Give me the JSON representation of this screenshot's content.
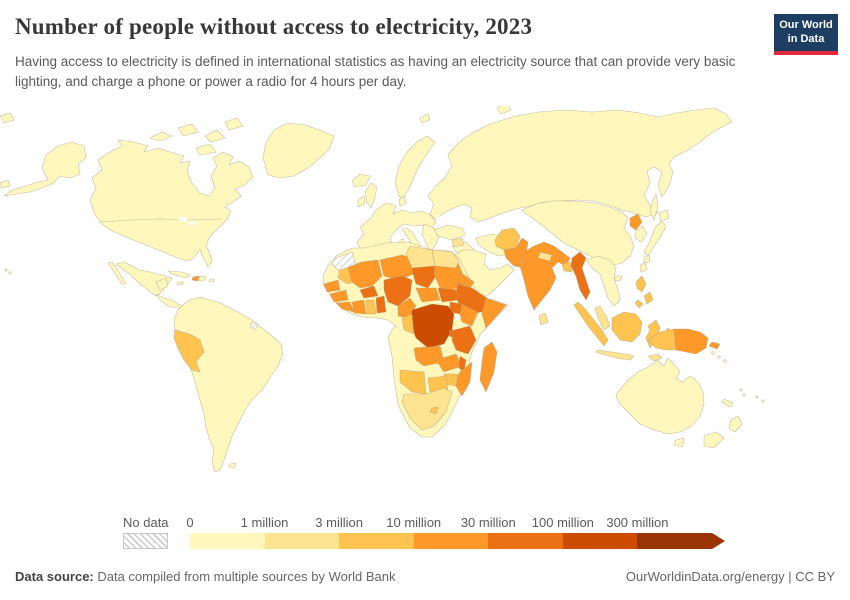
{
  "header": {
    "title": "Number of people without access to electricity, 2023",
    "subtitle": "Having access to electricity is defined in international statistics as having an electricity source that can provide very basic lighting, and charge a phone or power a radio for 4 hours per day.",
    "logo": {
      "line1": "Our World",
      "line2": "in Data",
      "bg_color": "#1d3d63",
      "accent_color": "#e0293e"
    }
  },
  "legend": {
    "no_data_label": "No data",
    "tick_labels": [
      "0",
      "1 million",
      "3 million",
      "10 million",
      "30 million",
      "100 million",
      "300 million"
    ],
    "bins": [
      {
        "range": "0-1 million",
        "color": "#fff7bc"
      },
      {
        "range": "1-3 million",
        "color": "#fee391"
      },
      {
        "range": "3-10 million",
        "color": "#fec44f"
      },
      {
        "range": "10-30 million",
        "color": "#fe9929"
      },
      {
        "range": "30-100 million",
        "color": "#ec7014"
      },
      {
        "range": "100-300 million",
        "color": "#cc4c02"
      },
      {
        "range": "300+ million",
        "color": "#993404"
      }
    ]
  },
  "map": {
    "ocean_color": "#ffffff",
    "border_color": "#a79b85",
    "regions": {
      "western-sahara": -1,
      "french-guiana": -1,
      "peru": 2,
      "haiti": 3,
      "mauritania": 2,
      "senegal": 3,
      "guinea": 3,
      "sierra-leone-liberia": 3,
      "ivory-coast": 3,
      "ghana": 2,
      "togo-benin": 4,
      "burkina-faso": 4,
      "mali": 3,
      "niger": 3,
      "nigeria": 4,
      "chad": 4,
      "sudan": 3,
      "egypt": 1,
      "libya": 1,
      "eritrea": 3,
      "ethiopia": 4,
      "somalia": 3,
      "south-sudan": 4,
      "central-african-republic": 3,
      "cameroon": 3,
      "uganda": 4,
      "kenya": 3,
      "drc": 5,
      "congo": 2,
      "rwanda-burundi": 4,
      "tanzania": 4,
      "angola": 3,
      "zambia": 3,
      "malawi": 4,
      "mozambique": 3,
      "zimbabwe": 2,
      "botswana": 2,
      "namibia": 2,
      "south-africa": 1,
      "lesotho": 2,
      "madagascar": 3,
      "yemen": 3,
      "syria": 1,
      "afghanistan": 2,
      "pakistan": 3,
      "india": 3,
      "nepal": 1,
      "bangladesh": 2,
      "sri-lanka": 1,
      "myanmar": 4,
      "malay-peninsula": 1,
      "north-korea": 3,
      "sumatra": 2,
      "java": 1,
      "borneo": 2,
      "sulawesi": 2,
      "philippines": 2,
      "timor": 1,
      "papua-indonesia": 2,
      "papua-new-guinea": 3,
      "new-britain": 3
    }
  },
  "footer": {
    "source_label": "Data source:",
    "source_text": " Data compiled from multiple sources by World Bank",
    "link_text": "OurWorldinData.org/energy",
    "divider": " | ",
    "license_text": "CC BY"
  },
  "chart_data": {
    "type": "choropleth_map",
    "title": "Number of people without access to electricity, 2023",
    "legend_bins": [
      "0-1 million",
      "1-3 million",
      "3-10 million",
      "10-30 million",
      "30-100 million",
      "100-300 million",
      "300+ million"
    ],
    "legend_colors": [
      "#fff7bc",
      "#fee391",
      "#fec44f",
      "#fe9929",
      "#ec7014",
      "#cc4c02",
      "#993404"
    ],
    "regions_by_bin": {
      "no_data": [
        "Western Sahara",
        "French Guiana"
      ],
      "0-1 million": [
        "United States",
        "Canada",
        "Greenland",
        "Mexico",
        "Brazil",
        "Argentina",
        "Chile",
        "Colombia",
        "Venezuela",
        "Europe",
        "Russia",
        "China",
        "Japan",
        "South Korea",
        "Turkey",
        "Iran",
        "Saudi Arabia",
        "Oman",
        "Thailand",
        "Vietnam",
        "Australia",
        "New Zealand",
        "Morocco",
        "Algeria",
        "Tunisia",
        "Gabon"
      ],
      "1-3 million": [
        "Egypt",
        "Libya",
        "Syria",
        "Nepal",
        "Sri Lanka",
        "South Africa",
        "Java (Indonesia)",
        "Malaysia",
        "Timor"
      ],
      "3-10 million": [
        "Peru",
        "Afghanistan",
        "Bangladesh",
        "Mauritania",
        "Ghana",
        "Congo",
        "Namibia",
        "Botswana",
        "Zimbabwe",
        "Lesotho",
        "Indonesia (Sumatra, Borneo, Sulawesi, Papua)",
        "Philippines"
      ],
      "10-30 million": [
        "Haiti",
        "Pakistan",
        "India",
        "North Korea",
        "Yemen",
        "Senegal",
        "Guinea",
        "Liberia",
        "Ivory Coast",
        "Mali",
        "Niger",
        "Sudan",
        "Eritrea",
        "Somalia",
        "Central African Republic",
        "Cameroon",
        "Kenya",
        "Angola",
        "Zambia",
        "Mozambique",
        "Madagascar",
        "Papua New Guinea"
      ],
      "30-100 million": [
        "Nigeria",
        "Chad",
        "Burkina Faso",
        "Togo/Benin",
        "South Sudan",
        "Ethiopia",
        "Uganda",
        "Rwanda/Burundi",
        "Tanzania",
        "Malawi",
        "Myanmar"
      ],
      "100-300 million": [
        "Democratic Republic of Congo"
      ]
    }
  }
}
